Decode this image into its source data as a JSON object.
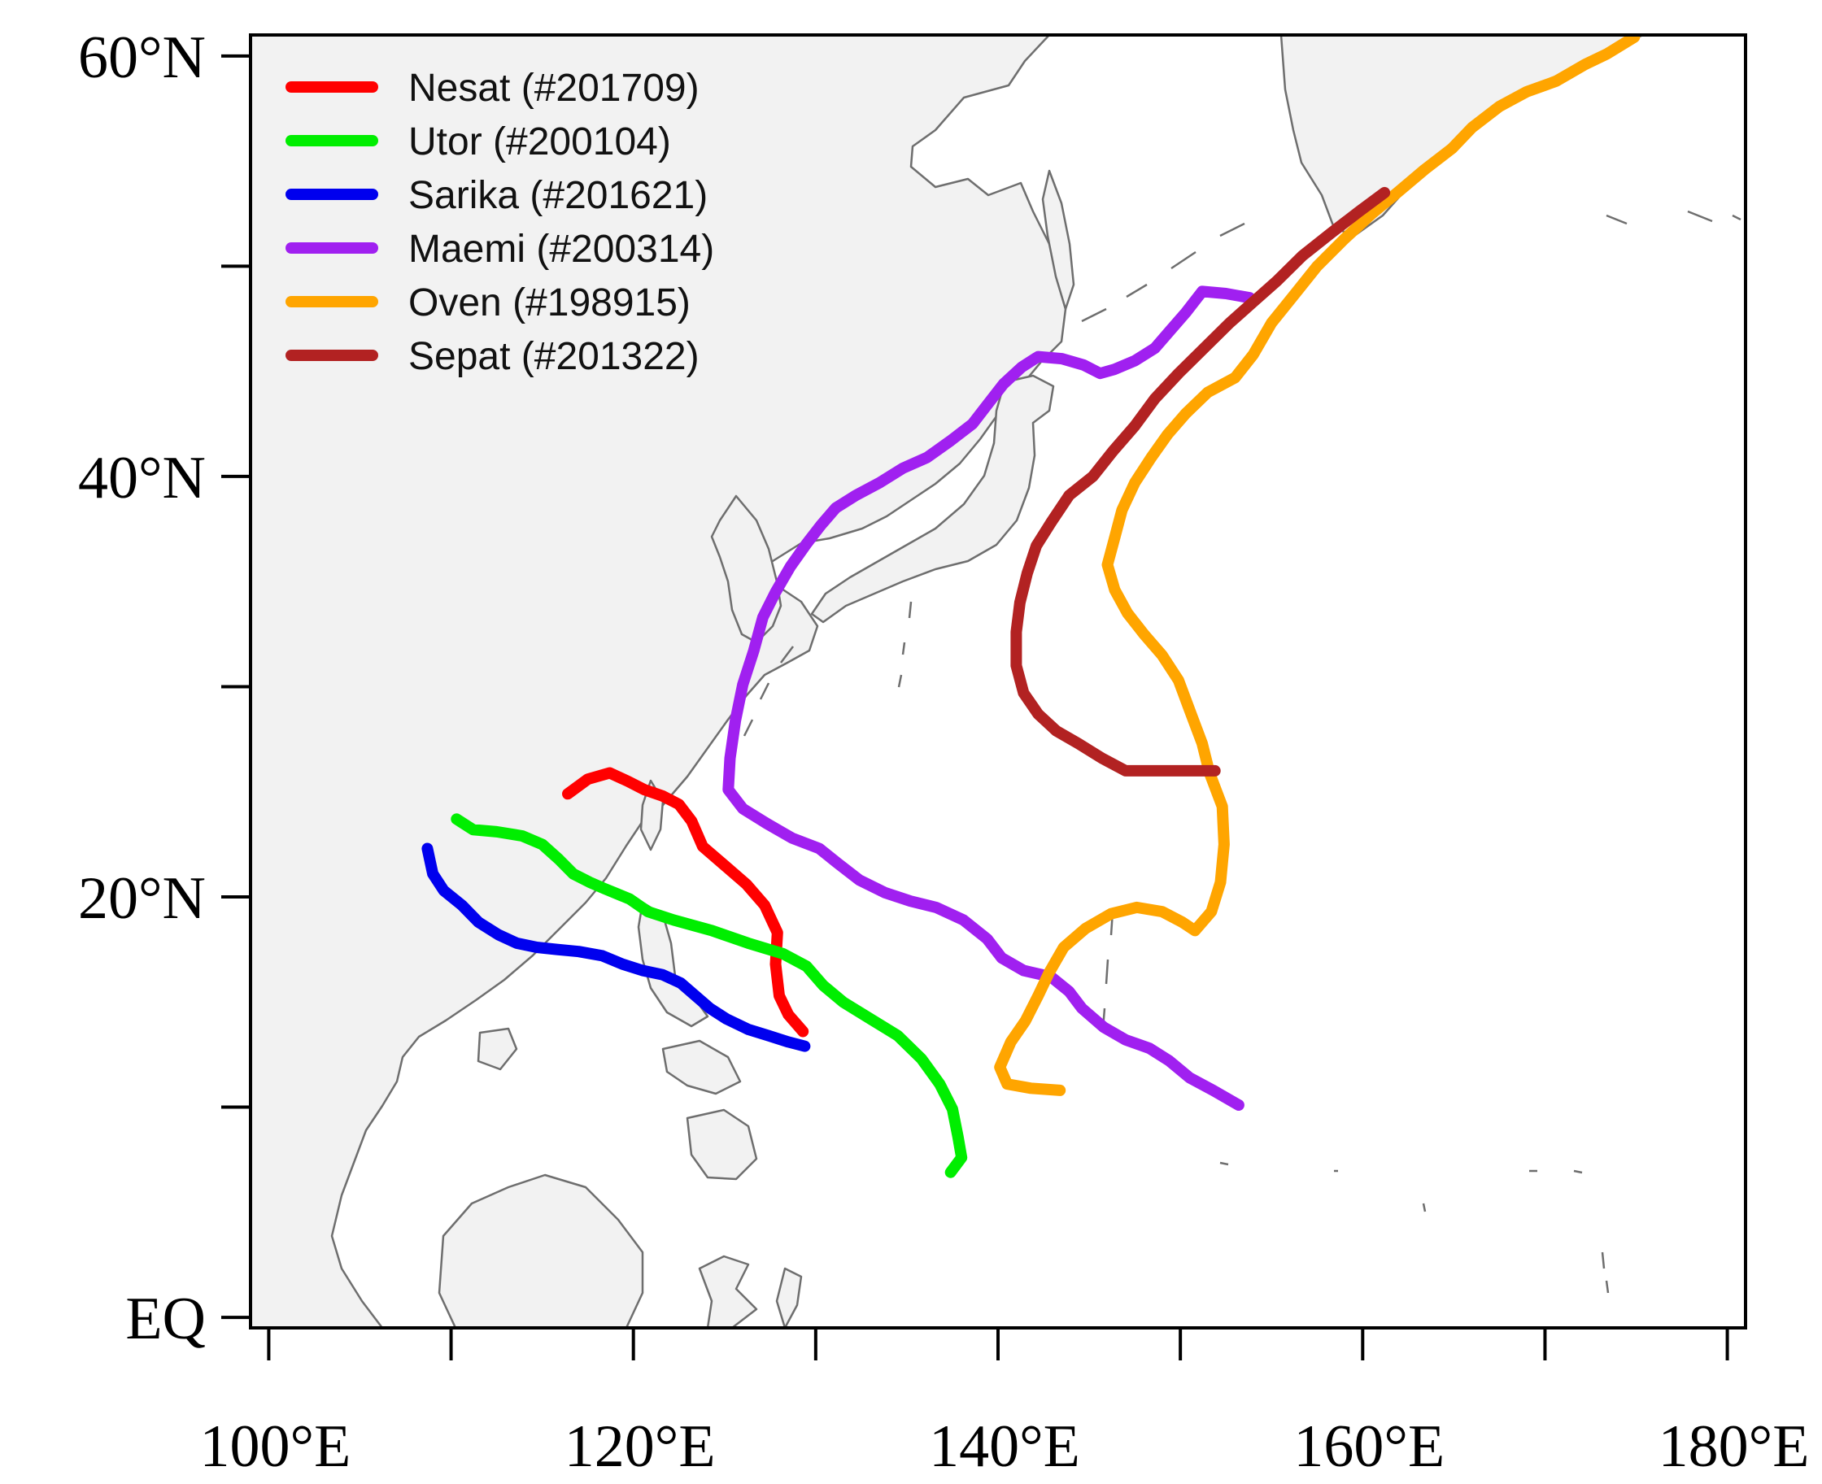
{
  "map": {
    "lon_range": [
      99,
      181
    ],
    "lat_range": [
      -0.5,
      61
    ],
    "x_ticks": [
      {
        "value": 100,
        "label": "100°E"
      },
      {
        "value": 120,
        "label": "120°E"
      },
      {
        "value": 140,
        "label": "140°E"
      },
      {
        "value": 160,
        "label": "160°E"
      },
      {
        "value": 180,
        "label": "180°E"
      }
    ],
    "y_ticks": [
      {
        "value": 0,
        "label": "EQ"
      },
      {
        "value": 20,
        "label": "20°N"
      },
      {
        "value": 40,
        "label": "40°N"
      },
      {
        "value": 60,
        "label": "60°N"
      }
    ],
    "minor_y_ticks": [
      10,
      30,
      50
    ],
    "minor_x_ticks": [
      110,
      130,
      150,
      170
    ],
    "land_color": "#f2f2f2",
    "coast_color": "#6e6e6e",
    "legend_placement": "top-left"
  },
  "chart_data": {
    "type": "line",
    "xlabel": "",
    "ylabel": "",
    "series": [
      {
        "name": "Nesat (#201709)",
        "color": "#ff0000",
        "points": [
          [
            129.3,
            13.6
          ],
          [
            128.5,
            14.4
          ],
          [
            128.0,
            15.3
          ],
          [
            127.8,
            16.8
          ],
          [
            127.9,
            18.3
          ],
          [
            127.2,
            19.6
          ],
          [
            126.2,
            20.6
          ],
          [
            125.0,
            21.5
          ],
          [
            123.8,
            22.4
          ],
          [
            123.2,
            23.6
          ],
          [
            122.5,
            24.4
          ],
          [
            121.6,
            24.8
          ],
          [
            120.6,
            25.1
          ],
          [
            119.7,
            25.5
          ],
          [
            118.7,
            25.9
          ],
          [
            117.5,
            25.6
          ],
          [
            116.4,
            24.9
          ]
        ]
      },
      {
        "name": "Utor (#200104)",
        "color": "#00ee00",
        "points": [
          [
            137.4,
            6.9
          ],
          [
            138.0,
            7.6
          ],
          [
            137.8,
            8.6
          ],
          [
            137.5,
            9.9
          ],
          [
            136.8,
            11.1
          ],
          [
            135.8,
            12.3
          ],
          [
            134.5,
            13.4
          ],
          [
            133.0,
            14.2
          ],
          [
            131.5,
            15.0
          ],
          [
            130.4,
            15.8
          ],
          [
            129.5,
            16.7
          ],
          [
            128.2,
            17.3
          ],
          [
            126.3,
            17.8
          ],
          [
            124.3,
            18.4
          ],
          [
            122.2,
            18.9
          ],
          [
            120.8,
            19.3
          ],
          [
            119.8,
            19.9
          ],
          [
            118.4,
            20.4
          ],
          [
            117.6,
            20.7
          ],
          [
            116.7,
            21.1
          ],
          [
            115.9,
            21.8
          ],
          [
            115.0,
            22.5
          ],
          [
            113.9,
            22.9
          ],
          [
            112.5,
            23.1
          ],
          [
            111.2,
            23.2
          ],
          [
            110.3,
            23.7
          ]
        ]
      },
      {
        "name": "Sarika (#201621)",
        "color": "#0000ee",
        "points": [
          [
            129.4,
            12.9
          ],
          [
            128.5,
            13.1
          ],
          [
            127.4,
            13.4
          ],
          [
            126.3,
            13.7
          ],
          [
            125.1,
            14.2
          ],
          [
            124.2,
            14.7
          ],
          [
            123.4,
            15.3
          ],
          [
            122.6,
            15.9
          ],
          [
            121.6,
            16.3
          ],
          [
            120.5,
            16.5
          ],
          [
            119.4,
            16.8
          ],
          [
            118.3,
            17.2
          ],
          [
            117.0,
            17.4
          ],
          [
            115.8,
            17.5
          ],
          [
            114.7,
            17.6
          ],
          [
            113.6,
            17.8
          ],
          [
            112.6,
            18.2
          ],
          [
            111.5,
            18.8
          ],
          [
            110.6,
            19.6
          ],
          [
            109.6,
            20.3
          ],
          [
            109.0,
            21.1
          ],
          [
            108.7,
            22.3
          ]
        ]
      },
      {
        "name": "Maemi (#200314)",
        "color": "#a020f0",
        "points": [
          [
            153.2,
            10.1
          ],
          [
            151.8,
            10.8
          ],
          [
            150.5,
            11.4
          ],
          [
            149.4,
            12.2
          ],
          [
            148.3,
            12.8
          ],
          [
            147.0,
            13.2
          ],
          [
            145.8,
            13.8
          ],
          [
            144.6,
            14.7
          ],
          [
            143.9,
            15.5
          ],
          [
            142.9,
            16.2
          ],
          [
            141.4,
            16.5
          ],
          [
            140.2,
            17.1
          ],
          [
            139.4,
            18.0
          ],
          [
            138.1,
            18.9
          ],
          [
            136.6,
            19.5
          ],
          [
            135.2,
            19.8
          ],
          [
            133.8,
            20.2
          ],
          [
            132.4,
            20.8
          ],
          [
            131.2,
            21.6
          ],
          [
            130.2,
            22.3
          ],
          [
            128.7,
            22.8
          ],
          [
            127.3,
            23.5
          ],
          [
            126.0,
            24.2
          ],
          [
            125.2,
            25.1
          ],
          [
            125.3,
            26.6
          ],
          [
            125.6,
            28.4
          ],
          [
            126.0,
            30.1
          ],
          [
            126.6,
            31.7
          ],
          [
            127.1,
            33.3
          ],
          [
            127.8,
            34.5
          ],
          [
            128.6,
            35.7
          ],
          [
            129.5,
            36.8
          ],
          [
            130.3,
            37.7
          ],
          [
            131.1,
            38.5
          ],
          [
            132.2,
            39.1
          ],
          [
            133.5,
            39.7
          ],
          [
            134.8,
            40.4
          ],
          [
            136.1,
            40.9
          ],
          [
            137.4,
            41.7
          ],
          [
            138.6,
            42.5
          ],
          [
            139.4,
            43.4
          ],
          [
            140.3,
            44.4
          ],
          [
            141.3,
            45.2
          ],
          [
            142.2,
            45.7
          ],
          [
            143.5,
            45.6
          ],
          [
            144.7,
            45.3
          ],
          [
            145.6,
            44.9
          ],
          [
            146.4,
            45.1
          ],
          [
            147.5,
            45.5
          ],
          [
            148.6,
            46.1
          ],
          [
            149.4,
            46.9
          ],
          [
            150.3,
            47.8
          ],
          [
            151.2,
            48.8
          ],
          [
            152.5,
            48.7
          ],
          [
            153.8,
            48.5
          ]
        ]
      },
      {
        "name": "Oven (#198915)",
        "color": "#ffa500",
        "points": [
          [
            143.4,
            10.8
          ],
          [
            141.8,
            10.9
          ],
          [
            140.5,
            11.1
          ],
          [
            140.1,
            11.9
          ],
          [
            140.7,
            13.1
          ],
          [
            141.5,
            14.1
          ],
          [
            142.2,
            15.3
          ],
          [
            142.8,
            16.4
          ],
          [
            143.6,
            17.6
          ],
          [
            144.8,
            18.5
          ],
          [
            146.2,
            19.2
          ],
          [
            147.6,
            19.5
          ],
          [
            149.0,
            19.3
          ],
          [
            150.1,
            18.8
          ],
          [
            150.8,
            18.4
          ],
          [
            151.7,
            19.3
          ],
          [
            152.2,
            20.7
          ],
          [
            152.4,
            22.5
          ],
          [
            152.3,
            24.3
          ],
          [
            151.6,
            25.9
          ],
          [
            151.2,
            27.3
          ],
          [
            150.5,
            28.9
          ],
          [
            149.9,
            30.3
          ],
          [
            149.0,
            31.5
          ],
          [
            148.0,
            32.5
          ],
          [
            147.1,
            33.5
          ],
          [
            146.4,
            34.6
          ],
          [
            146.0,
            35.8
          ],
          [
            146.4,
            37.1
          ],
          [
            146.8,
            38.4
          ],
          [
            147.5,
            39.7
          ],
          [
            148.4,
            40.9
          ],
          [
            149.3,
            42.0
          ],
          [
            150.3,
            43.0
          ],
          [
            151.5,
            44.0
          ],
          [
            153.0,
            44.7
          ],
          [
            154.0,
            45.8
          ],
          [
            155.0,
            47.3
          ],
          [
            156.3,
            48.7
          ],
          [
            157.5,
            50.0
          ],
          [
            159.0,
            51.3
          ],
          [
            160.5,
            52.5
          ],
          [
            161.9,
            53.5
          ],
          [
            163.4,
            54.6
          ],
          [
            164.9,
            55.6
          ],
          [
            166.0,
            56.6
          ],
          [
            167.5,
            57.6
          ],
          [
            169.0,
            58.3
          ],
          [
            170.6,
            58.8
          ],
          [
            172.2,
            59.6
          ],
          [
            173.4,
            60.1
          ],
          [
            174.9,
            60.9
          ]
        ]
      },
      {
        "name": "Sepat (#201322)",
        "color": "#b22222",
        "points": [
          [
            151.9,
            26.0
          ],
          [
            150.2,
            26.0
          ],
          [
            148.6,
            26.0
          ],
          [
            147.0,
            26.0
          ],
          [
            145.7,
            26.6
          ],
          [
            144.4,
            27.3
          ],
          [
            143.2,
            27.9
          ],
          [
            142.2,
            28.7
          ],
          [
            141.4,
            29.7
          ],
          [
            141.0,
            31.0
          ],
          [
            141.0,
            32.6
          ],
          [
            141.2,
            34.0
          ],
          [
            141.6,
            35.4
          ],
          [
            142.1,
            36.7
          ],
          [
            142.9,
            37.8
          ],
          [
            143.9,
            39.1
          ],
          [
            145.2,
            40.0
          ],
          [
            146.3,
            41.2
          ],
          [
            147.5,
            42.4
          ],
          [
            148.6,
            43.7
          ],
          [
            149.9,
            44.9
          ],
          [
            151.3,
            46.1
          ],
          [
            152.7,
            47.3
          ],
          [
            154.0,
            48.3
          ],
          [
            155.3,
            49.3
          ],
          [
            156.7,
            50.5
          ],
          [
            158.3,
            51.6
          ],
          [
            159.8,
            52.6
          ],
          [
            161.2,
            53.5
          ]
        ]
      }
    ]
  }
}
